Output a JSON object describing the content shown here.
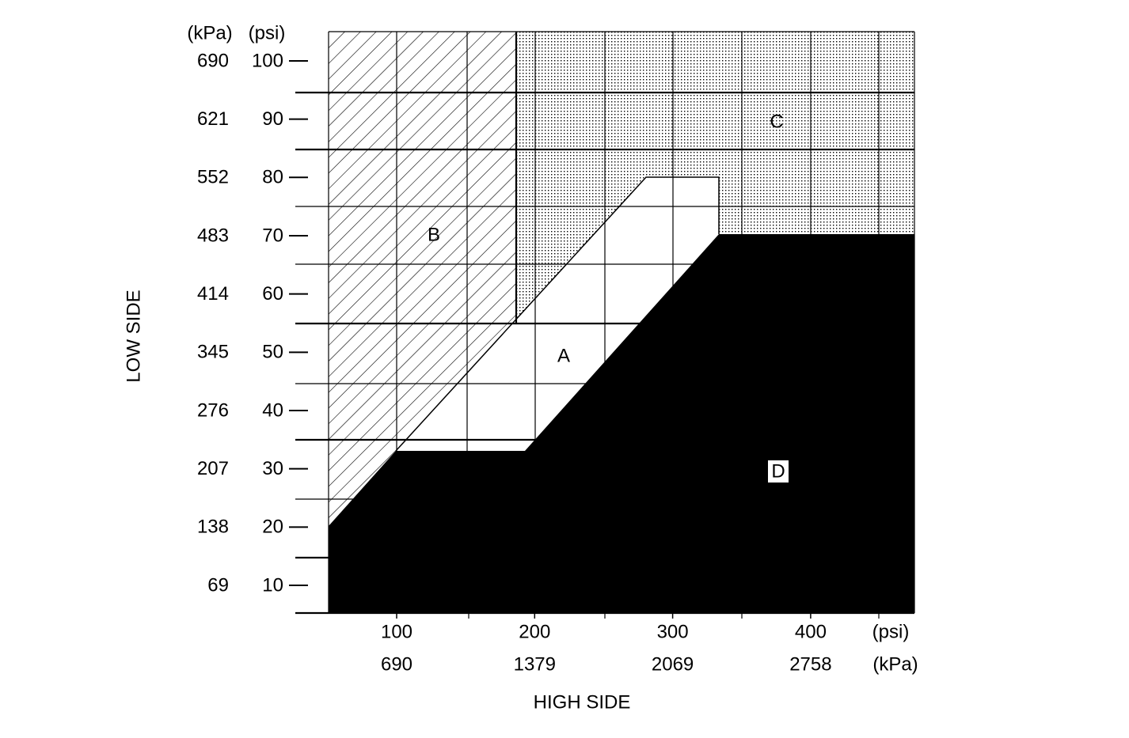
{
  "low_side": {
    "title": "LOW SIDE",
    "unit_kpa": "(kPa)",
    "unit_psi": "(psi)",
    "ticks": [
      {
        "psi": 100,
        "kpa": 690
      },
      {
        "psi": 90,
        "kpa": 621
      },
      {
        "psi": 80,
        "kpa": 552
      },
      {
        "psi": 70,
        "kpa": 483
      },
      {
        "psi": 60,
        "kpa": 414
      },
      {
        "psi": 50,
        "kpa": 345
      },
      {
        "psi": 40,
        "kpa": 276
      },
      {
        "psi": 30,
        "kpa": 207
      },
      {
        "psi": 20,
        "kpa": 138
      },
      {
        "psi": 10,
        "kpa": 69
      }
    ]
  },
  "high_side": {
    "title": "HIGH SIDE",
    "unit_psi": "(psi)",
    "unit_kpa": "(kPa)",
    "ticks": [
      {
        "psi": 100,
        "kpa": 690
      },
      {
        "psi": 200,
        "kpa": 1379
      },
      {
        "psi": 300,
        "kpa": 2069
      },
      {
        "psi": 400,
        "kpa": 2758
      }
    ]
  },
  "regions": {
    "a": "A",
    "b": "B",
    "c": "C",
    "d": "D"
  }
}
